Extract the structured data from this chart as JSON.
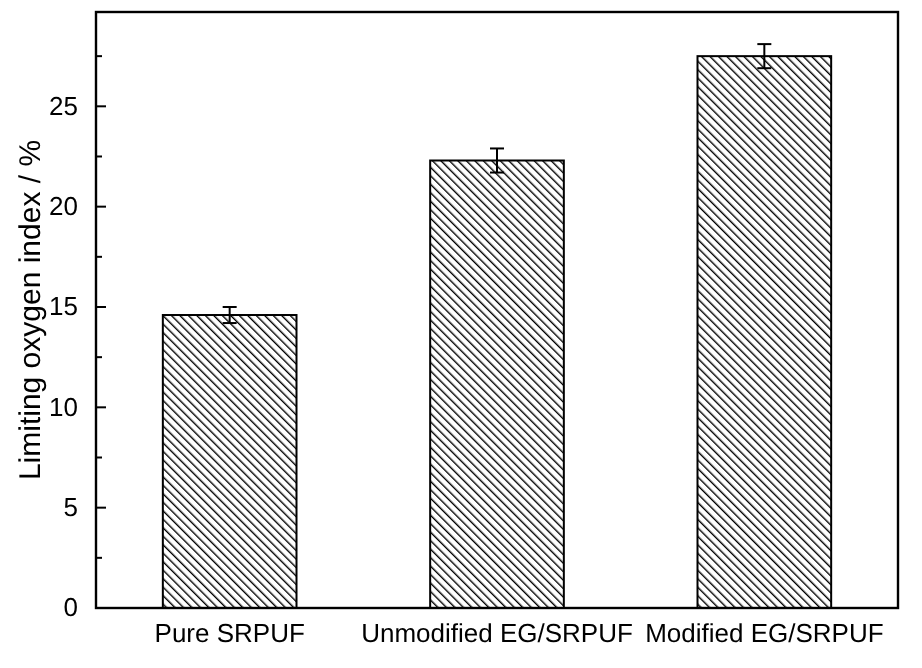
{
  "chart_data": {
    "type": "bar",
    "ylabel": "Limiting oxygen index / %",
    "categories": [
      "Pure SRPUF",
      "Unmodified EG/SRPUF",
      "Modified EG/SRPUF"
    ],
    "values": [
      14.6,
      22.3,
      27.5
    ],
    "errors": [
      0.4,
      0.6,
      0.6
    ],
    "color": "#000000",
    "ylim": [
      0,
      29.7
    ],
    "yticks": [
      0,
      {
        "value": 2.5,
        "label": null
      },
      5,
      {
        "value": 7.5,
        "label": null
      },
      10,
      {
        "value": 12.5,
        "label": null
      },
      15,
      {
        "value": 17.5,
        "label": null
      },
      20,
      {
        "value": 22.5,
        "label": null
      },
      25,
      {
        "value": 27.5,
        "label": null
      }
    ],
    "grid": false
  }
}
